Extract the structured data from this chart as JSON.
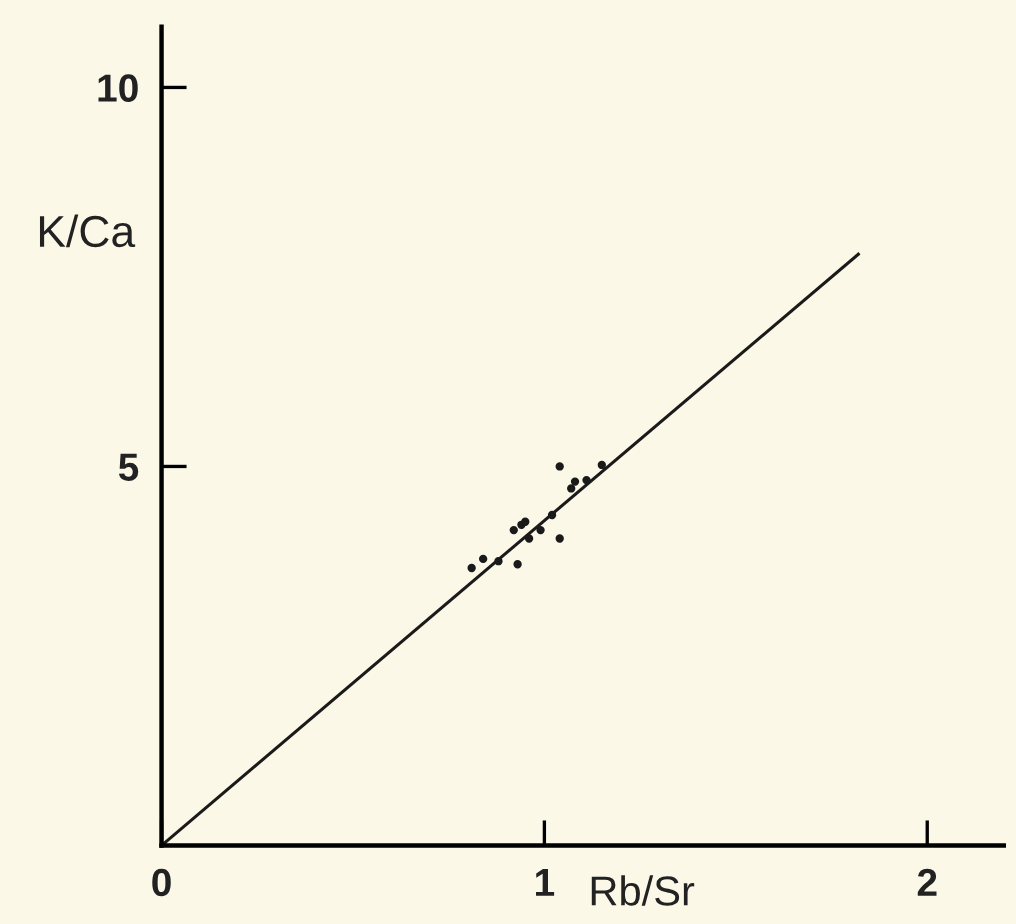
{
  "chart_data": {
    "type": "scatter",
    "xlabel": "Rb/Sr",
    "ylabel": "K/Ca",
    "xlim": [
      0,
      2.2
    ],
    "ylim": [
      0,
      10.8
    ],
    "xticks": [
      0,
      1,
      2
    ],
    "yticks": [
      5,
      10
    ],
    "grid": false,
    "legend": false,
    "series": [
      {
        "color": "#1a1a1a",
        "marker": "circle",
        "x": [
          0.81,
          0.84,
          0.88,
          0.93,
          0.92,
          0.94,
          0.95,
          0.96,
          0.99,
          1.02,
          1.04,
          1.04,
          1.07,
          1.08,
          1.11,
          1.15
        ],
        "values": [
          3.66,
          3.78,
          3.75,
          3.71,
          4.16,
          4.23,
          4.27,
          4.05,
          4.16,
          4.36,
          4.05,
          5.0,
          4.71,
          4.8,
          4.82,
          5.02
        ]
      },
      {
        "type": "line",
        "color": "#1a1a1a",
        "line_style": "solid",
        "marker": "none",
        "x": [
          0,
          1.82
        ],
        "values": [
          0,
          7.8
        ]
      }
    ]
  }
}
